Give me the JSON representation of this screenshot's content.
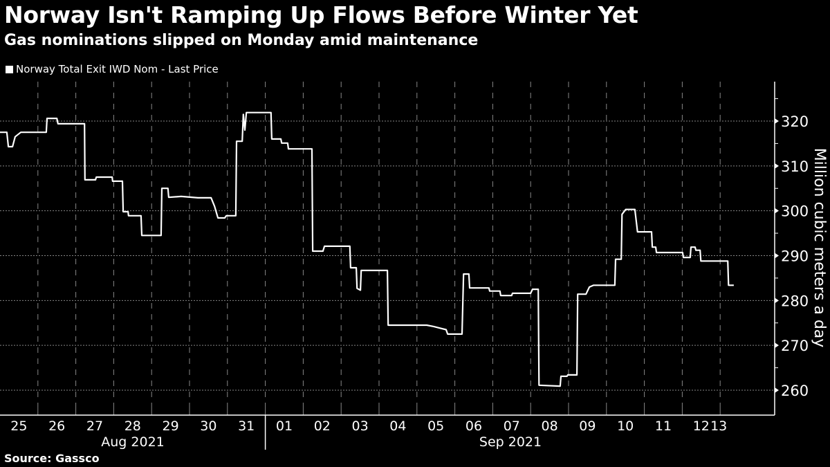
{
  "title": "Norway Isn't Ramping Up Flows Before Winter Yet",
  "subtitle": "Gas nominations slipped on Monday amid maintenance",
  "source": "Source: Gassco",
  "chart_data": {
    "type": "line",
    "title": "Norway Isn't Ramping Up Flows Before Winter Yet",
    "subtitle": "Gas nominations slipped on Monday amid maintenance",
    "legend": [
      "Norway Total Exit IWD Nom - Last Price"
    ],
    "legend_position": "top-left",
    "ylabel": "Million cubic meters a day",
    "xlabel": "",
    "ylim": [
      255,
      329
    ],
    "yticks": [
      260,
      270,
      280,
      290,
      300,
      310,
      320
    ],
    "ytick_labels": [
      "260",
      "270",
      "280",
      "290",
      "300",
      "310",
      "320"
    ],
    "x_unit": "days since 2021-08-25 00:00",
    "xlim": [
      0,
      20.4
    ],
    "xtick_labels": [
      "25",
      "26",
      "27",
      "28",
      "29",
      "30",
      "31",
      "01",
      "02",
      "03",
      "04",
      "05",
      "06",
      "07",
      "08",
      "09",
      "10",
      "11",
      "12",
      "13"
    ],
    "month_labels": [
      {
        "label": "Aug 2021",
        "start": 0,
        "end": 7
      },
      {
        "label": "Sep 2021",
        "start": 7,
        "end": 20.4
      }
    ],
    "grid": true,
    "color": "#ffffff",
    "series": [
      {
        "name": "Norway Total Exit IWD Nom - Last Price",
        "points": [
          [
            0,
            317.5
          ],
          [
            0.18,
            317.5
          ],
          [
            0.22,
            314.3
          ],
          [
            0.33,
            314.3
          ],
          [
            0.4,
            316.5
          ],
          [
            0.55,
            317.5
          ],
          [
            1.22,
            317.5
          ],
          [
            1.24,
            320.6
          ],
          [
            1.5,
            320.6
          ],
          [
            1.53,
            319.4
          ],
          [
            2.23,
            319.4
          ],
          [
            2.24,
            306.9
          ],
          [
            2.52,
            306.9
          ],
          [
            2.54,
            307.5
          ],
          [
            2.96,
            307.5
          ],
          [
            2.97,
            306.6
          ],
          [
            3.23,
            306.6
          ],
          [
            3.25,
            299.8
          ],
          [
            3.38,
            299.8
          ],
          [
            3.39,
            298.9
          ],
          [
            3.72,
            298.9
          ],
          [
            3.74,
            294.5
          ],
          [
            4.25,
            294.5
          ],
          [
            4.27,
            305.0
          ],
          [
            4.43,
            305.0
          ],
          [
            4.45,
            303.0
          ],
          [
            4.78,
            303.2
          ],
          [
            5.22,
            302.9
          ],
          [
            5.57,
            302.9
          ],
          [
            5.66,
            301.0
          ],
          [
            5.75,
            298.4
          ],
          [
            5.93,
            298.4
          ],
          [
            5.97,
            298.9
          ],
          [
            6.22,
            298.9
          ],
          [
            6.24,
            315.5
          ],
          [
            6.39,
            315.5
          ],
          [
            6.42,
            321.5
          ],
          [
            6.46,
            318.0
          ],
          [
            6.5,
            321.9
          ],
          [
            7.15,
            321.9
          ],
          [
            7.17,
            316.0
          ],
          [
            7.41,
            316.0
          ],
          [
            7.43,
            315.1
          ],
          [
            7.59,
            315.1
          ],
          [
            7.61,
            313.8
          ],
          [
            8.23,
            313.8
          ],
          [
            8.25,
            291.0
          ],
          [
            8.52,
            291.0
          ],
          [
            8.56,
            292.1
          ],
          [
            9.23,
            292.1
          ],
          [
            9.25,
            287.3
          ],
          [
            9.4,
            287.3
          ],
          [
            9.42,
            282.7
          ],
          [
            9.51,
            282.3
          ],
          [
            9.53,
            286.7
          ],
          [
            10.22,
            286.7
          ],
          [
            10.24,
            274.5
          ],
          [
            11.26,
            274.5
          ],
          [
            11.44,
            274.2
          ],
          [
            11.77,
            273.5
          ],
          [
            11.81,
            272.5
          ],
          [
            12.19,
            272.5
          ],
          [
            12.23,
            285.9
          ],
          [
            12.37,
            285.9
          ],
          [
            12.39,
            282.8
          ],
          [
            12.9,
            282.8
          ],
          [
            12.92,
            282.1
          ],
          [
            13.19,
            282.1
          ],
          [
            13.21,
            281.1
          ],
          [
            13.5,
            281.1
          ],
          [
            13.52,
            281.6
          ],
          [
            14.0,
            281.6
          ],
          [
            14.05,
            282.5
          ],
          [
            14.2,
            282.5
          ],
          [
            14.22,
            261.1
          ],
          [
            14.78,
            260.9
          ],
          [
            14.8,
            263.1
          ],
          [
            14.96,
            263.1
          ],
          [
            14.98,
            263.4
          ],
          [
            15.22,
            263.4
          ],
          [
            15.24,
            281.4
          ],
          [
            15.46,
            281.4
          ],
          [
            15.55,
            283.0
          ],
          [
            15.66,
            283.4
          ],
          [
            16.22,
            283.4
          ],
          [
            16.24,
            289.2
          ],
          [
            16.39,
            289.2
          ],
          [
            16.41,
            299.2
          ],
          [
            16.51,
            300.3
          ],
          [
            16.75,
            300.3
          ],
          [
            16.82,
            295.3
          ],
          [
            17.19,
            295.3
          ],
          [
            17.21,
            291.9
          ],
          [
            17.3,
            291.9
          ],
          [
            17.32,
            290.7
          ],
          [
            18.01,
            290.7
          ],
          [
            18.03,
            289.6
          ],
          [
            18.21,
            289.6
          ],
          [
            18.23,
            291.9
          ],
          [
            18.34,
            291.9
          ],
          [
            18.36,
            291.2
          ],
          [
            18.47,
            291.2
          ],
          [
            18.49,
            288.8
          ],
          [
            19.2,
            288.8
          ],
          [
            19.22,
            283.4
          ],
          [
            19.36,
            283.4
          ]
        ]
      }
    ]
  }
}
